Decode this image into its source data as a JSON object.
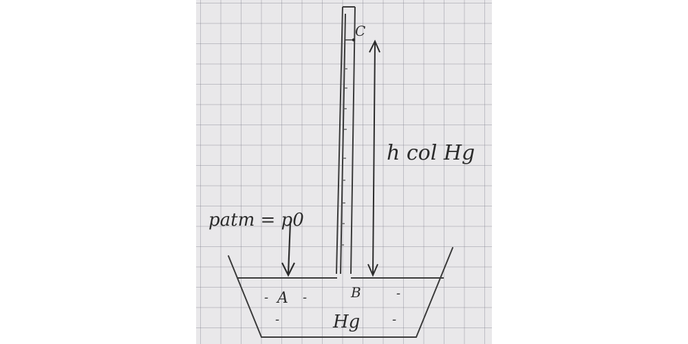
{
  "diagram": {
    "labels": {
      "point_c": "C",
      "point_a": "A",
      "point_b": "B",
      "column_height": "h col Hg",
      "atmospheric_pressure": "patm = p0",
      "liquid": "Hg",
      "dash_a_left": "-",
      "dash_a_right": "-",
      "dash_b_right": "-",
      "dash_left_low": "-",
      "dash_right_low": "-"
    }
  }
}
